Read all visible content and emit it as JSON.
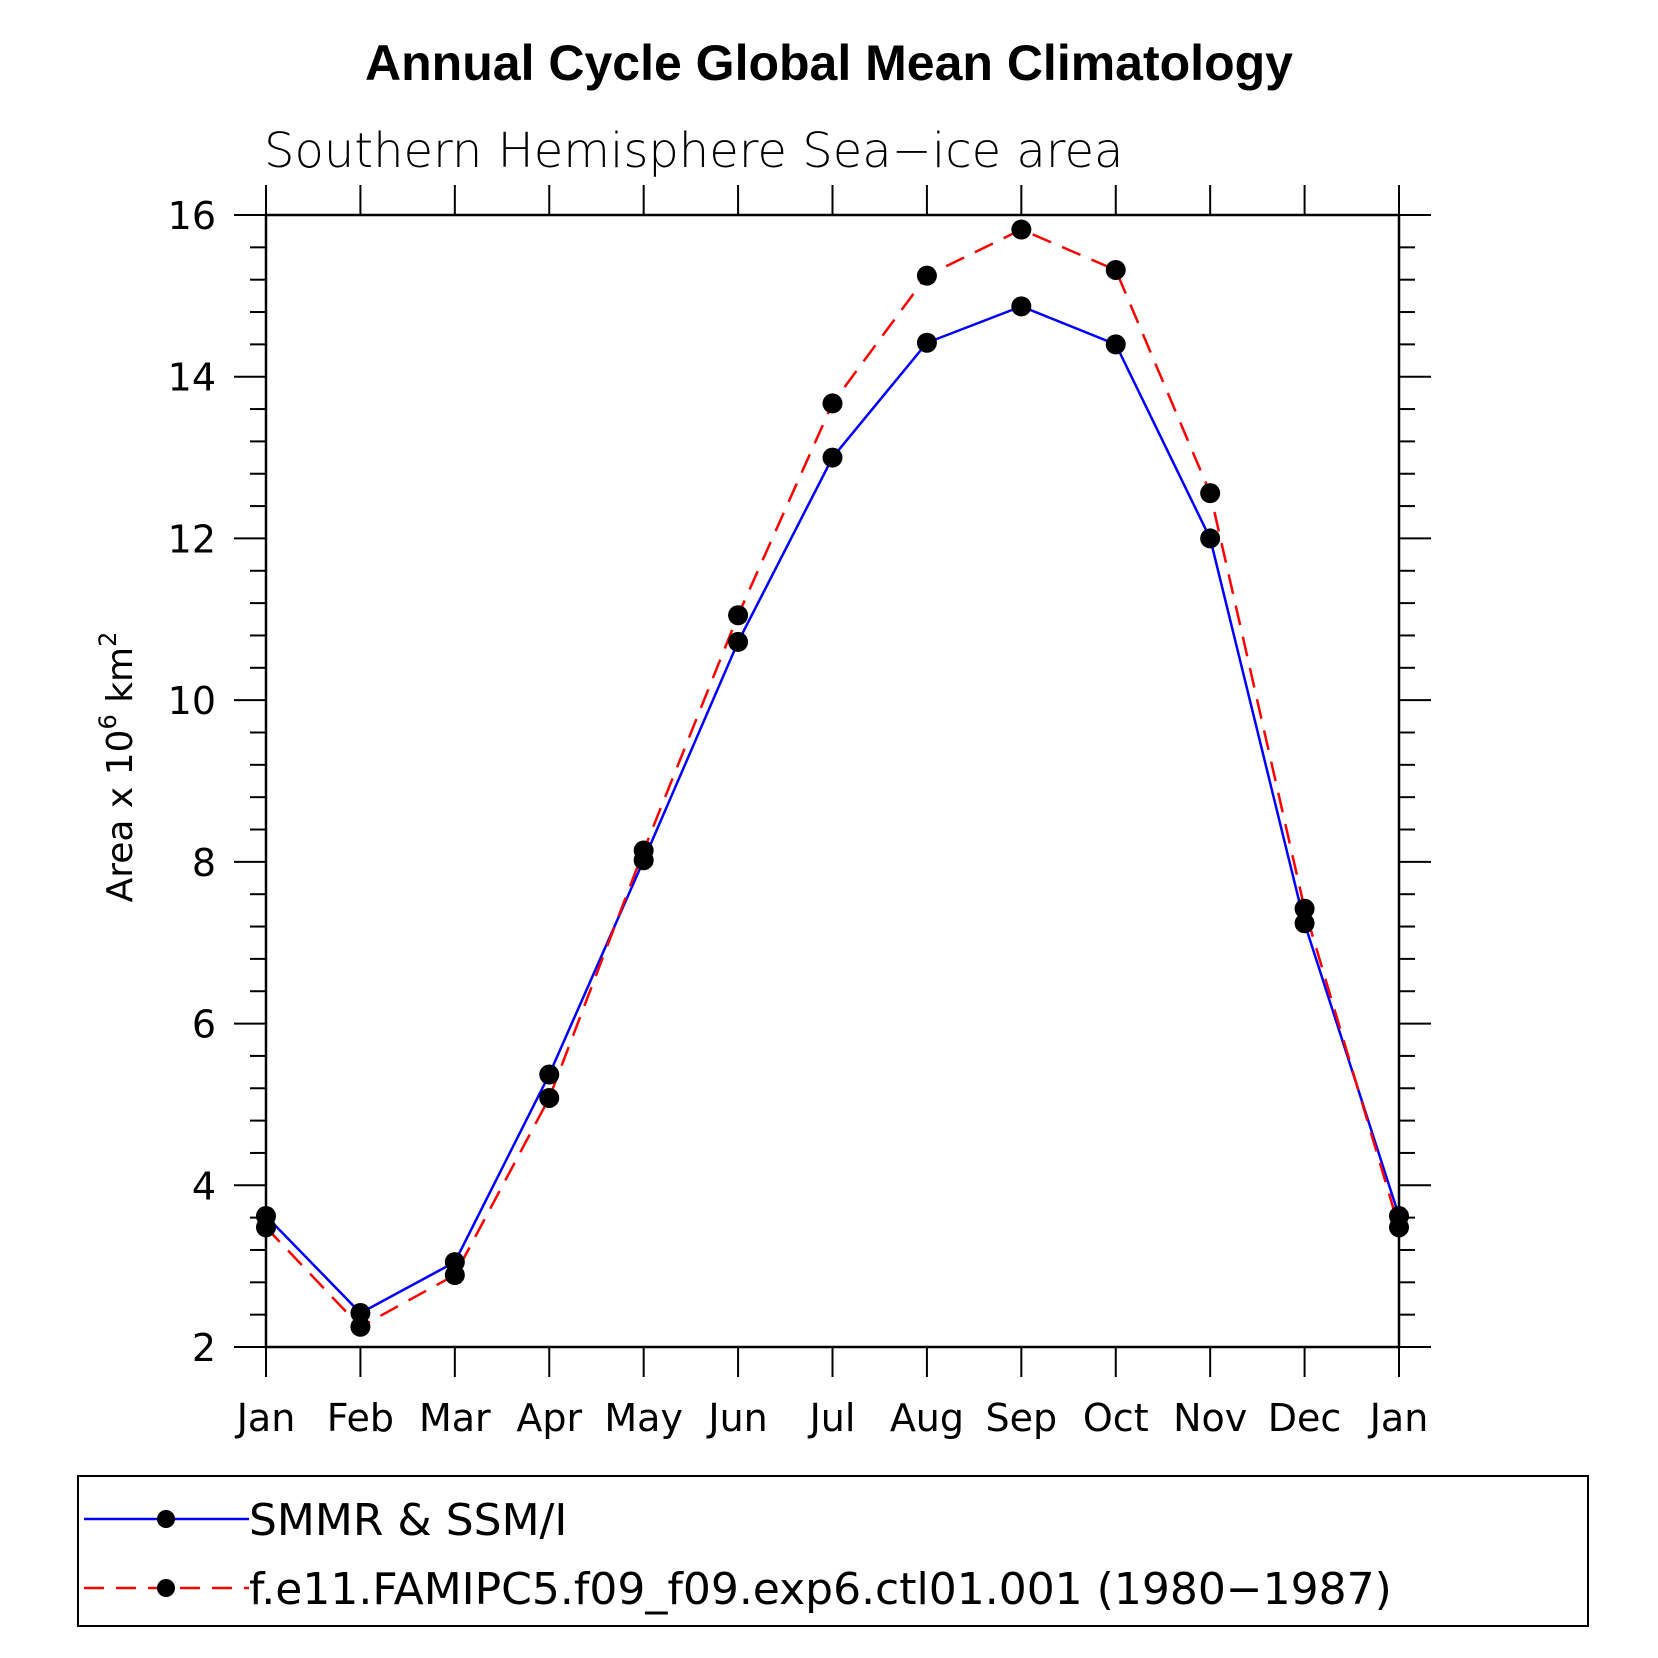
{
  "chart_data": {
    "type": "line",
    "title": "Annual Cycle Global Mean Climatology",
    "subtitle": "Southern Hemisphere Sea−ice area",
    "ylabel": "Area x 10",
    "ylabel_exp": "6",
    "ylabel_unit": " km",
    "ylabel_unit_exp": "2",
    "categories": [
      "Jan",
      "Feb",
      "Mar",
      "Apr",
      "May",
      "Jun",
      "Jul",
      "Aug",
      "Sep",
      "Oct",
      "Nov",
      "Dec",
      "Jan"
    ],
    "ylim": [
      2,
      16
    ],
    "yticks": [
      "2",
      "4",
      "6",
      "8",
      "10",
      "12",
      "14",
      "16"
    ],
    "series": [
      {
        "name": "SMMR & SSM/I",
        "color": "#0000ff",
        "line_style": "solid",
        "values": [
          3.62,
          2.42,
          3.05,
          5.37,
          8.02,
          10.72,
          13.0,
          14.42,
          14.87,
          14.4,
          12.0,
          7.24,
          3.62
        ]
      },
      {
        "name": "f.e11.FAMIPC5.f09_f09.exp6.ctl01.001 (1980−1987)",
        "color": "#ff0000",
        "line_style": "dashed",
        "values": [
          3.48,
          2.25,
          2.89,
          5.08,
          8.14,
          11.05,
          13.67,
          15.25,
          15.82,
          15.32,
          12.56,
          7.42,
          3.48
        ]
      }
    ],
    "grid": false,
    "legend_position": "bottom",
    "marker_color": "#000000"
  }
}
